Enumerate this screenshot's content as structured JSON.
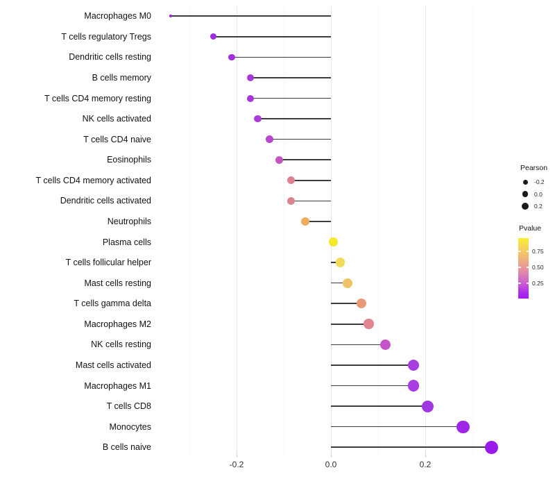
{
  "chart_data": {
    "type": "lollipop",
    "orientation": "horizontal",
    "title": "",
    "xlabel": "",
    "ylabel": "",
    "xlim": [
      -0.375,
      0.375
    ],
    "x_major_ticks": [
      -0.2,
      0.0,
      0.2
    ],
    "x_major_tick_labels": [
      "-0.2",
      "0.0",
      "0.2"
    ],
    "x_minor_ticks": [
      -0.3,
      -0.1,
      0.1,
      0.3
    ],
    "grid": "on",
    "baseline": 0.0,
    "categories": [
      "Macrophages M0",
      "T cells regulatory  Tregs",
      "Dendritic cells resting",
      "B cells memory",
      "T cells CD4 memory resting",
      "NK cells activated",
      "T cells CD4 naive",
      "Eosinophils",
      "T cells CD4 memory activated",
      "Dendritic cells activated",
      "Neutrophils",
      "Plasma cells",
      "T cells follicular helper",
      "Mast cells resting",
      "T cells gamma delta",
      "Macrophages M2",
      "NK cells resting",
      "Mast cells activated",
      "Macrophages M1",
      "T cells CD8",
      "Monocytes",
      "B cells naive"
    ],
    "values": [
      -0.34,
      -0.25,
      -0.21,
      -0.17,
      -0.17,
      -0.155,
      -0.13,
      -0.11,
      -0.085,
      -0.085,
      -0.055,
      0.005,
      0.02,
      0.035,
      0.065,
      0.08,
      0.115,
      0.175,
      0.175,
      0.205,
      0.28,
      0.34
    ],
    "point_colors": [
      "#9a1ce4",
      "#9d2cde",
      "#a02edc",
      "#a836da",
      "#a836da",
      "#ac3bd8",
      "#b847cf",
      "#c455be",
      "#dc8390",
      "#dc8390",
      "#eead5d",
      "#f5e829",
      "#f1db55",
      "#ebc568",
      "#e79a73",
      "#e0858d",
      "#c355c8",
      "#a83ee1",
      "#a83ee1",
      "#a136e3",
      "#9c27e7",
      "#9a1be9"
    ],
    "point_sizes": [
      4.5,
      9,
      9.5,
      10,
      10,
      10.4,
      10.8,
      11,
      11.4,
      11.4,
      12,
      12.7,
      13.3,
      13.7,
      14.3,
      14.7,
      15.3,
      16.3,
      16.3,
      17,
      18.3,
      19
    ],
    "segment_color": "#3c3c3c",
    "legend_position": "right"
  },
  "legend": {
    "size": {
      "title": "Pearson",
      "items": [
        {
          "label": "-0.2",
          "diameter": 7
        },
        {
          "label": "0.0",
          "diameter": 8.5
        },
        {
          "label": "0.2",
          "diameter": 10
        }
      ],
      "dot_color": "#1a1a1a"
    },
    "color": {
      "title": "Pvalue",
      "tick_labels": [
        "0.75",
        "0.50",
        "0.25"
      ],
      "gradient_top": "#f9ed31",
      "gradient_bottom": "#a416f0"
    }
  }
}
